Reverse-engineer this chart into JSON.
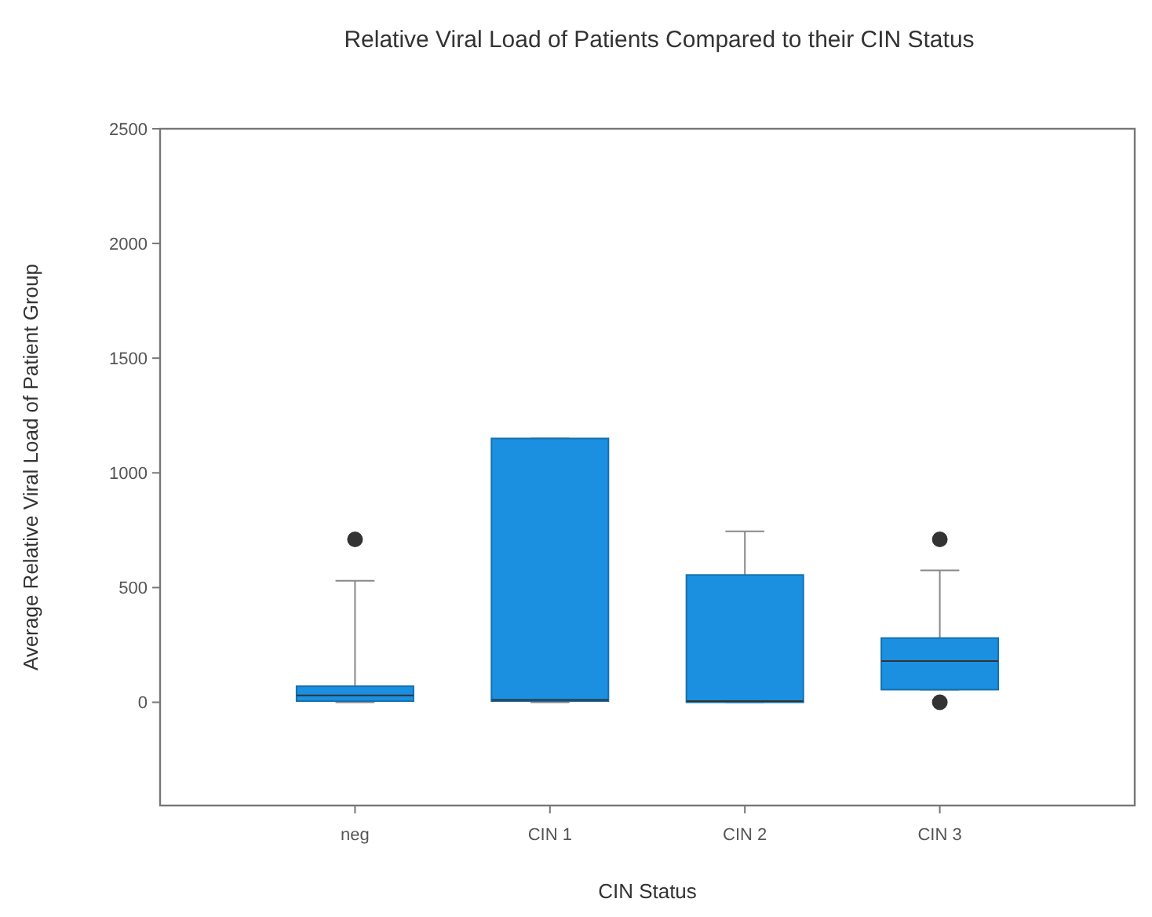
{
  "chart_data": {
    "type": "box",
    "title": "Relative Viral Load of Patients Compared to their CIN Status",
    "xlabel": "CIN Status",
    "ylabel": "Average Relative Viral Load of Patient Group",
    "categories": [
      "neg",
      "CIN 1",
      "CIN 2",
      "CIN 3"
    ],
    "color": "#1b8fe0",
    "boxes": [
      {
        "low": 0,
        "q1": 5,
        "median": 30,
        "q3": 70,
        "high": 530,
        "outliers": [
          710
        ]
      },
      {
        "low": 0,
        "q1": 5,
        "median": 10,
        "q3": 1150,
        "high": 1150
      },
      {
        "low": 0,
        "q1": 0,
        "median": 5,
        "q3": 555,
        "high": 745
      },
      {
        "low": 55,
        "q1": 55,
        "median": 180,
        "q3": 280,
        "high": 575,
        "outliers": [
          710,
          0
        ]
      }
    ],
    "ylim": [
      -450,
      2500
    ],
    "yticks": [
      0,
      500,
      1000,
      1500,
      2000,
      2500
    ],
    "grid": false
  }
}
